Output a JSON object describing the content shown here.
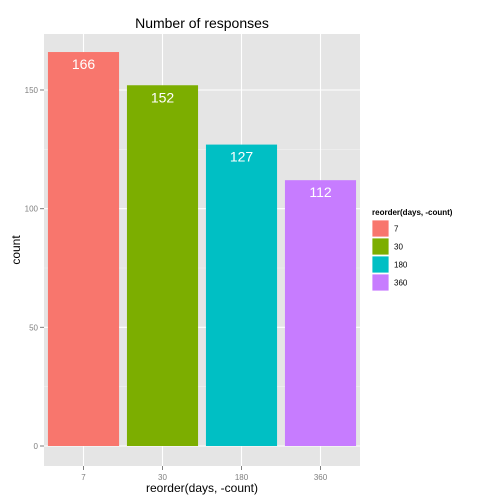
{
  "chart_data": {
    "type": "bar",
    "title": "Number of responses",
    "xlabel": "reorder(days, -count)",
    "ylabel": "count",
    "categories": [
      "7",
      "30",
      "180",
      "360"
    ],
    "values": [
      166,
      152,
      127,
      112
    ],
    "ylim": [
      0,
      175
    ],
    "yticks": [
      0,
      50,
      100,
      150
    ],
    "colors": [
      "#F8766D",
      "#7CAE00",
      "#00BFC4",
      "#C77CFF"
    ],
    "grid": true,
    "panel_background": "#E5E5E5",
    "legend": {
      "title": "reorder(days, -count)",
      "position": "right",
      "entries": [
        "7",
        "30",
        "180",
        "360"
      ]
    }
  }
}
